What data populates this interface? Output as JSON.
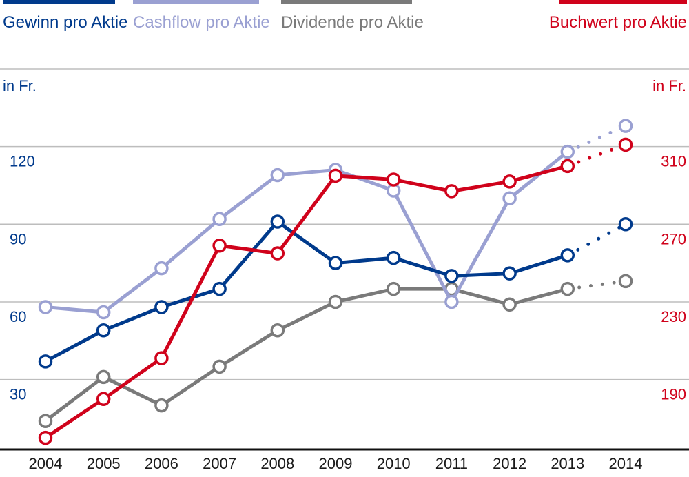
{
  "chart_data": {
    "type": "line",
    "categories": [
      "2004",
      "2005",
      "2006",
      "2007",
      "2008",
      "2009",
      "2010",
      "2011",
      "2012",
      "2013",
      "2014"
    ],
    "left_axis": {
      "label": "in Fr.",
      "ticks": [
        "30",
        "60",
        "90",
        "120"
      ],
      "tick_values": [
        30,
        60,
        90,
        120
      ],
      "range": [
        3,
        150
      ]
    },
    "right_axis": {
      "label": "in Fr.",
      "ticks": [
        "190",
        "230",
        "270",
        "310"
      ],
      "tick_values": [
        190,
        230,
        270,
        310
      ],
      "range": [
        154,
        350
      ]
    },
    "grid": true,
    "estimate_from": "2013",
    "series": [
      {
        "name": "Gewinn pro Aktie",
        "axis": "left",
        "color": "#003a8c",
        "values": [
          37,
          49,
          58,
          65,
          91,
          75,
          77,
          70,
          71,
          78,
          90
        ]
      },
      {
        "name": "Cashflow pro Aktie",
        "axis": "left",
        "color": "#9aa0d2",
        "values": [
          58,
          56,
          73,
          92,
          109,
          111,
          103,
          60,
          100,
          118,
          128
        ]
      },
      {
        "name": "Dividende pro Aktie",
        "axis": "left",
        "color": "#7a7a7a",
        "values": [
          14,
          31,
          20,
          35,
          49,
          60,
          65,
          65,
          59,
          65,
          68
        ]
      },
      {
        "name": "Buchwert pro Aktie",
        "axis": "right",
        "color": "#d0021b",
        "values": [
          160,
          180,
          201,
          259,
          255,
          295,
          293,
          287,
          292,
          300,
          311
        ]
      }
    ]
  }
}
